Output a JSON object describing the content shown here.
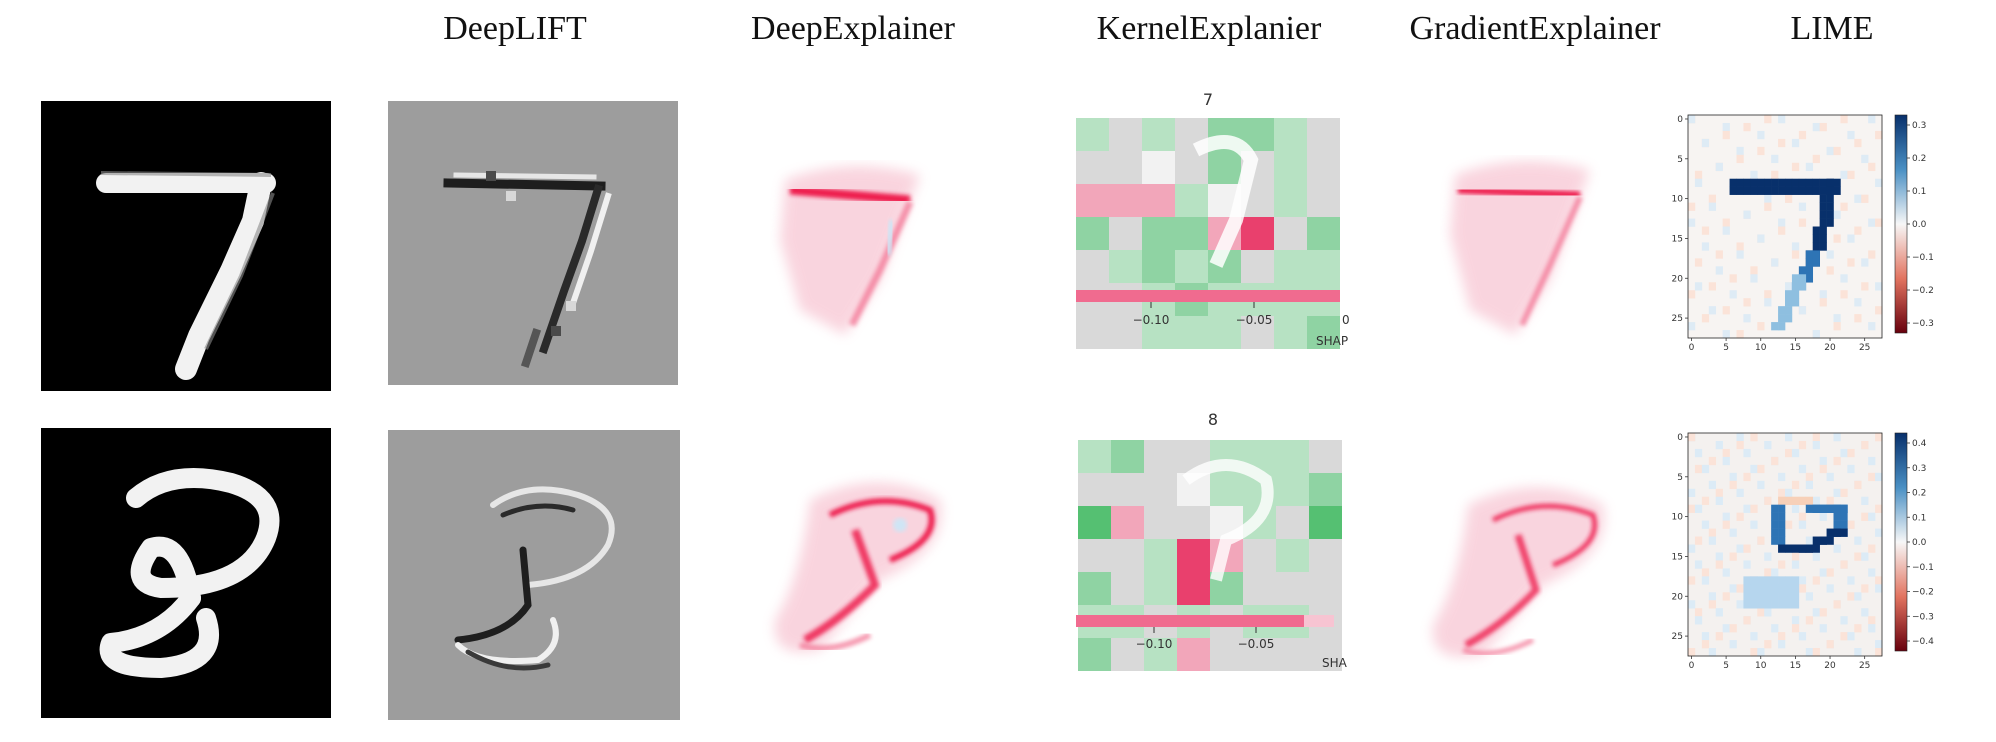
{
  "headers": [
    "DeepLIFT",
    "DeepExplainer",
    "KernelExplanier",
    "GradientExplainer",
    "LIME"
  ],
  "rows": [
    {
      "digit": "7",
      "kernel": {
        "title": "7",
        "xticks": [
          "−0.10",
          "−0.05",
          "0"
        ],
        "xlabel": "SHAP"
      },
      "lime": {
        "axis_ticks": [
          "0",
          "5",
          "10",
          "15",
          "20",
          "25"
        ],
        "colorbar_ticks": [
          "0.3",
          "0.2",
          "0.1",
          "0.0",
          "−0.1",
          "−0.2",
          "−0.3"
        ]
      }
    },
    {
      "digit": "8",
      "kernel": {
        "title": "8",
        "xticks": [
          "−0.10",
          "−0.05"
        ],
        "xlabel": "SHA"
      },
      "lime": {
        "axis_ticks": [
          "0",
          "5",
          "10",
          "15",
          "20",
          "25"
        ],
        "colorbar_ticks": [
          "0.4",
          "0.3",
          "0.2",
          "0.1",
          "0.0",
          "−0.1",
          "−0.2",
          "−0.3",
          "−0.4"
        ]
      }
    }
  ],
  "colors": {
    "lime_pos": "#08306b",
    "lime_neg": "#67000d",
    "shap_pos": "#ff0051",
    "shap_neg": "#30b465"
  }
}
